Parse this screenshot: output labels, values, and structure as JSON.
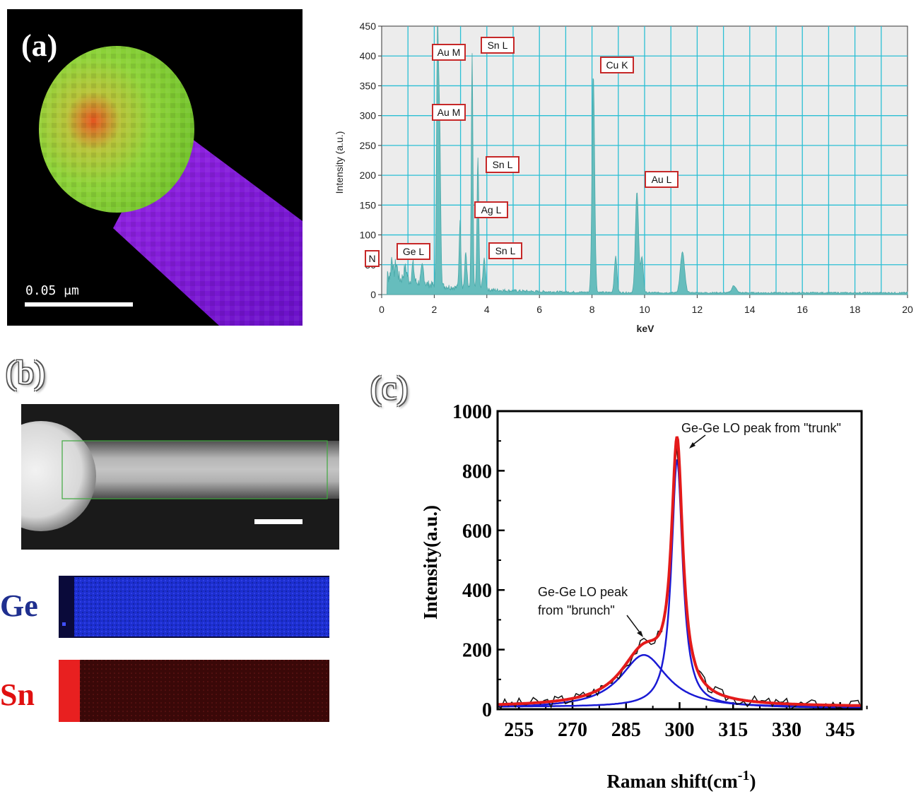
{
  "panel_a": {
    "label": "(a)",
    "scale_text": "0.05 μm",
    "colors": {
      "sphere": "#8fd43a",
      "sphere_edge": "#e0562a",
      "rod": "#8a1fe0",
      "background": "#000000"
    }
  },
  "eds": {
    "ylabel": "Intensity (a.u.)",
    "xlabel": "keV",
    "x_ticks": [
      "0",
      "2",
      "4",
      "6",
      "8",
      "10",
      "12",
      "14",
      "16",
      "18",
      "20"
    ],
    "y_ticks": [
      "0",
      "50",
      "100",
      "150",
      "200",
      "250",
      "300",
      "350",
      "400",
      "450"
    ],
    "peak_labels": [
      "N",
      "Ge L",
      "Au M",
      "Sn L",
      "Au M",
      "Sn L",
      "Ag L",
      "Sn L",
      "Cu K",
      "Au L"
    ]
  },
  "panel_b": {
    "label": "(b)",
    "ge_label": "Ge",
    "sn_label": "Sn",
    "colors": {
      "ge": "#1f2f8f",
      "sn": "#e01010"
    }
  },
  "panel_c": {
    "label": "(c)",
    "annotation_trunk": "Ge-Ge LO peak from \"trunk\"",
    "annotation_brunch_line1": "Ge-Ge LO peak",
    "annotation_brunch_line2": "from \"brunch\"",
    "xlabel": "Raman shift(cm",
    "xlabel_sup": "-1",
    "xlabel_end": ")",
    "ylabel": "Intensity(a.u.)",
    "x_ticks": [
      "255",
      "270",
      "285",
      "300",
      "315",
      "330",
      "345"
    ],
    "y_ticks": [
      "0",
      "200",
      "400",
      "600",
      "800",
      "1000"
    ]
  },
  "chart_data": [
    {
      "type": "line",
      "xlabel": "keV",
      "ylabel": "Intensity (a.u.)",
      "xlim": [
        0,
        20
      ],
      "ylim": [
        0,
        450
      ],
      "grid": true,
      "series": [
        {
          "x": [
            0.1,
            0.3,
            0.5,
            0.9,
            1.2,
            1.7,
            2.0,
            2.15,
            2.2,
            2.4,
            2.98,
            3.44,
            3.66,
            3.9,
            4.5,
            6,
            7,
            8.05,
            8.9,
            9.71,
            9.9,
            11.44,
            13.4,
            15,
            20
          ],
          "values": [
            30,
            60,
            45,
            50,
            55,
            45,
            150,
            410,
            300,
            80,
            125,
            410,
            230,
            60,
            25,
            12,
            10,
            375,
            70,
            175,
            90,
            75,
            20,
            10,
            4
          ]
        }
      ],
      "annotations": [
        "N",
        "Ge L",
        "Au M",
        "Sn L",
        "Au M",
        "Sn L",
        "Ag L",
        "Sn L",
        "Cu K",
        "Au L"
      ]
    },
    {
      "type": "line",
      "xlabel": "Raman shift(cm-1)",
      "ylabel": "Intensity(a.u.)",
      "xlim": [
        249,
        351
      ],
      "ylim": [
        0,
        1000
      ],
      "x_ticks": [
        255,
        270,
        285,
        300,
        315,
        330,
        345
      ],
      "y_ticks": [
        0,
        200,
        400,
        600,
        800,
        1000
      ],
      "series": [
        {
          "role": "measured",
          "color": "#000000",
          "x": [
            249,
            260,
            270,
            278,
            285,
            290,
            294,
            297,
            299,
            301,
            304,
            310,
            320,
            330,
            340,
            351
          ],
          "values": [
            18,
            28,
            50,
            110,
            205,
            290,
            500,
            830,
            895,
            760,
            380,
            95,
            40,
            22,
            15,
            12
          ]
        },
        {
          "role": "fit total",
          "color": "#e41a1a",
          "x": [
            249,
            260,
            270,
            278,
            285,
            290,
            294,
            297,
            299,
            301,
            304,
            310,
            320,
            330,
            340,
            351
          ],
          "values": [
            15,
            25,
            48,
            100,
            195,
            280,
            490,
            830,
            920,
            760,
            370,
            90,
            38,
            20,
            14,
            11
          ]
        },
        {
          "role": "component trunk",
          "color": "#1a1ad4",
          "center": 299.3,
          "amplitude": 830,
          "hwhm": 1.9
        },
        {
          "role": "component brunch",
          "color": "#1a1ad4",
          "center": 290,
          "amplitude": 180,
          "hwhm": 8
        }
      ],
      "annotations": [
        "Ge-Ge LO peak from \"trunk\"",
        "Ge-Ge LO peak from \"brunch\""
      ]
    }
  ]
}
